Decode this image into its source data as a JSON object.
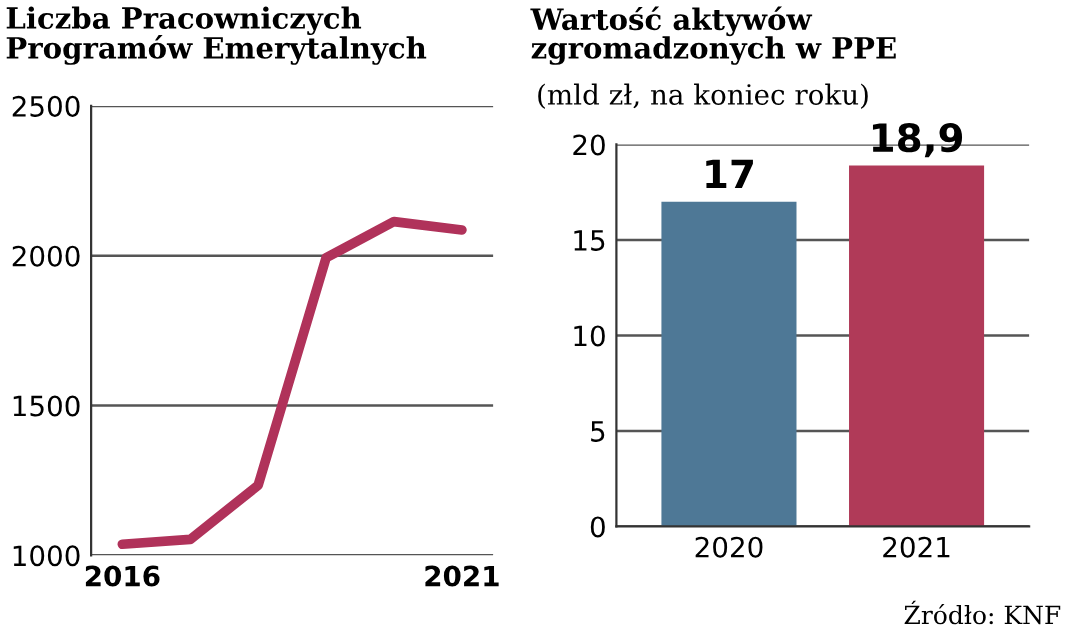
{
  "chart_data": [
    {
      "type": "line",
      "title": "Liczba Pracowniczych\nProgramów Emerytalnych",
      "x": [
        2016,
        2017,
        2018,
        2019,
        2020,
        2021
      ],
      "series": [
        {
          "color": "#b0325a",
          "values": [
            1037,
            1053,
            1234,
            1993,
            2114,
            2086
          ]
        }
      ],
      "xlim": [
        2015.54,
        2021.46
      ],
      "xticks": [
        2016,
        2021
      ],
      "ylim": [
        1000,
        2500
      ],
      "yticks": [
        1000,
        1500,
        2000,
        2500
      ],
      "grid": "y",
      "marker": "none",
      "line_style": "solid"
    },
    {
      "type": "bar",
      "title": "Wartość aktywów\nzgromadzonych w PPE",
      "subtitle": "(mld zł, na koniec roku)",
      "categories": [
        "2020",
        "2021"
      ],
      "values": [
        17,
        18.9
      ],
      "colors": [
        "#4e7896",
        "#b03a58"
      ],
      "value_labels": [
        "17",
        "18,9"
      ],
      "ylim": [
        0,
        20
      ],
      "yticks": [
        0,
        5,
        10,
        15,
        20
      ],
      "grid": "y",
      "annotations": [
        "Źródło: KNF"
      ]
    }
  ]
}
